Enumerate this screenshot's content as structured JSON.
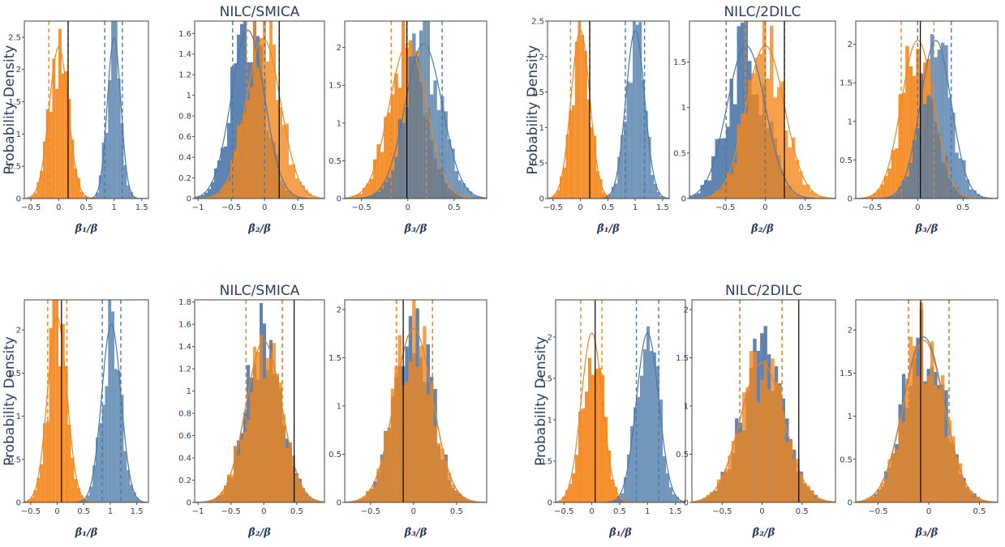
{
  "colors": {
    "orange": "#f58518",
    "blue": "#4c78a8",
    "axis_text": "#2a3f5f",
    "ref_line": "#000000"
  },
  "figure": {
    "ylabel": "Probability Density"
  },
  "chart_data": [
    {
      "type": "histogram",
      "group": "top-left",
      "panel": 1,
      "title": "",
      "xlabel": "β̂₁/β",
      "ylabel": "Probability Density",
      "xlim": [
        -0.62,
        1.62
      ],
      "ylim": [
        0,
        2.75
      ],
      "xticks": [
        -0.5,
        0,
        0.5,
        1,
        1.5
      ],
      "yticks": [
        0,
        0.5,
        1,
        1.5,
        2,
        2.5
      ],
      "series": [
        {
          "color": "orange",
          "mean": 0.0,
          "sd": 0.17,
          "peak": 2.35,
          "dashed": [
            -0.18,
            0.17
          ]
        },
        {
          "color": "blue",
          "mean": 1.0,
          "sd": 0.12,
          "peak": 2.5,
          "dashed": [
            0.83,
            1.15
          ]
        }
      ],
      "ref_line": 0.17
    },
    {
      "type": "histogram",
      "group": "top-left",
      "panel": 2,
      "title": "NILC/SMICA",
      "xlabel": "β̂₂/β",
      "xlim": [
        -1.05,
        0.9
      ],
      "ylim": [
        0,
        1.72
      ],
      "xticks": [
        -1,
        -0.5,
        0,
        0.5
      ],
      "yticks": [
        0,
        0.2,
        0.4,
        0.6,
        0.8,
        1,
        1.2,
        1.4,
        1.6
      ],
      "series": [
        {
          "color": "blue",
          "mean": -0.25,
          "sd": 0.25,
          "peak": 1.63,
          "dashed": [
            -0.48,
            0.0
          ]
        },
        {
          "color": "orange",
          "mean": -0.02,
          "sd": 0.26,
          "peak": 1.55,
          "dashed": [
            -0.27,
            0.22
          ]
        }
      ],
      "ref_line": 0.22
    },
    {
      "type": "histogram",
      "group": "top-left",
      "panel": 3,
      "title": "",
      "xlabel": "β̂₃/β",
      "xlim": [
        -0.68,
        0.85
      ],
      "ylim": [
        0,
        2.35
      ],
      "xticks": [
        -0.5,
        0,
        0.5
      ],
      "yticks": [
        0,
        0.5,
        1,
        1.5,
        2
      ],
      "series": [
        {
          "color": "orange",
          "mean": 0.0,
          "sd": 0.2,
          "peak": 2.05,
          "dashed": [
            -0.18,
            0.2
          ]
        },
        {
          "color": "blue",
          "mean": 0.17,
          "sd": 0.2,
          "peak": 2.05,
          "dashed": [
            -0.01,
            0.37
          ]
        }
      ],
      "ref_line": -0.01
    },
    {
      "type": "histogram",
      "group": "top-right",
      "panel": 1,
      "title": "",
      "xlabel": "β̂₁/β",
      "ylabel": "Probability Density",
      "xlim": [
        -0.6,
        1.62
      ],
      "ylim": [
        0,
        2.5
      ],
      "xticks": [
        -0.5,
        0,
        0.5,
        1,
        1.5
      ],
      "yticks": [
        0,
        0.5,
        1,
        1.5,
        2,
        2.5
      ],
      "series": [
        {
          "color": "orange",
          "mean": 0.0,
          "sd": 0.17,
          "peak": 2.37,
          "dashed": [
            -0.18,
            0.17
          ]
        },
        {
          "color": "blue",
          "mean": 1.0,
          "sd": 0.17,
          "peak": 2.37,
          "dashed": [
            0.82,
            1.17
          ]
        }
      ],
      "ref_line": 0.17
    },
    {
      "type": "histogram",
      "group": "top-right",
      "panel": 2,
      "title": "NILC/2DILC",
      "xlabel": "β̂₂/β",
      "xlim": [
        -0.95,
        0.88
      ],
      "ylim": [
        0,
        1.95
      ],
      "xticks": [
        -0.5,
        0,
        0.5
      ],
      "yticks": [
        0,
        0.5,
        1,
        1.5
      ],
      "series": [
        {
          "color": "blue",
          "mean": -0.24,
          "sd": 0.24,
          "peak": 1.68,
          "dashed": [
            -0.49,
            0.0
          ]
        },
        {
          "color": "orange",
          "mean": 0.0,
          "sd": 0.24,
          "peak": 1.68,
          "dashed": [
            -0.25,
            0.24
          ]
        }
      ],
      "ref_line": 0.24
    },
    {
      "type": "histogram",
      "group": "top-right",
      "panel": 3,
      "title": "",
      "xlabel": "β̂₃/β",
      "xlim": [
        -0.68,
        0.88
      ],
      "ylim": [
        0,
        2.3
      ],
      "xticks": [
        -0.5,
        0,
        0.5
      ],
      "yticks": [
        0,
        0.5,
        1,
        1.5,
        2
      ],
      "series": [
        {
          "color": "orange",
          "mean": 0.0,
          "sd": 0.18,
          "peak": 2.05,
          "dashed": [
            -0.18,
            0.18
          ]
        },
        {
          "color": "blue",
          "mean": 0.2,
          "sd": 0.17,
          "peak": 2.05,
          "dashed": [
            0.0,
            0.37
          ]
        }
      ],
      "ref_line": 0.03
    },
    {
      "type": "histogram",
      "group": "bottom-left",
      "panel": 1,
      "title": "",
      "xlabel": "β̂₁/β",
      "ylabel": "Probability Density",
      "xlim": [
        -0.62,
        1.72
      ],
      "ylim": [
        0,
        2.35
      ],
      "xticks": [
        -0.5,
        0,
        0.5,
        1,
        1.5
      ],
      "yticks": [
        0,
        0.5,
        1,
        1.5,
        2
      ],
      "series": [
        {
          "color": "orange",
          "mean": 0.0,
          "sd": 0.18,
          "peak": 2.15,
          "dashed": [
            -0.18,
            0.18
          ]
        },
        {
          "color": "blue",
          "mean": 1.02,
          "sd": 0.18,
          "peak": 2.07,
          "dashed": [
            0.85,
            1.2
          ]
        }
      ],
      "ref_line": 0.08
    },
    {
      "type": "histogram",
      "group": "bottom-left",
      "panel": 2,
      "title": "NILC/SMICA",
      "xlabel": "β̂₂/β",
      "xlim": [
        -1.05,
        0.92
      ],
      "ylim": [
        0,
        1.82
      ],
      "xticks": [
        -1,
        -0.5,
        0,
        0.5
      ],
      "yticks": [
        0,
        0.2,
        0.4,
        0.6,
        0.8,
        1,
        1.2,
        1.4,
        1.6,
        1.8
      ],
      "series": [
        {
          "color": "blue",
          "mean": 0.0,
          "sd": 0.27,
          "peak": 1.45,
          "dashed": [
            -0.27,
            0.28
          ]
        },
        {
          "color": "orange",
          "mean": 0.0,
          "sd": 0.27,
          "peak": 1.45,
          "dashed": [
            -0.27,
            0.28
          ]
        }
      ],
      "ref_line": 0.46
    },
    {
      "type": "histogram",
      "group": "bottom-left",
      "panel": 3,
      "title": "",
      "xlabel": "β̂₃/β",
      "xlim": [
        -0.8,
        0.85
      ],
      "ylim": [
        0,
        2.1
      ],
      "xticks": [
        -0.5,
        0,
        0.5
      ],
      "yticks": [
        0,
        0.5,
        1,
        1.5,
        2
      ],
      "series": [
        {
          "color": "blue",
          "mean": 0.0,
          "sd": 0.22,
          "peak": 1.8,
          "dashed": [
            -0.2,
            0.22
          ]
        },
        {
          "color": "orange",
          "mean": 0.0,
          "sd": 0.22,
          "peak": 1.8,
          "dashed": [
            -0.2,
            0.22
          ]
        }
      ],
      "ref_line": -0.12
    },
    {
      "type": "histogram",
      "group": "bottom-right",
      "panel": 1,
      "title": "",
      "xlabel": "β̂₁/β",
      "ylabel": "Probability Density",
      "xlim": [
        -0.65,
        1.68
      ],
      "ylim": [
        0,
        2.45
      ],
      "xticks": [
        -0.5,
        0,
        0.5,
        1,
        1.5
      ],
      "yticks": [
        0,
        0.5,
        1,
        1.5,
        2
      ],
      "series": [
        {
          "color": "orange",
          "mean": 0.0,
          "sd": 0.19,
          "peak": 2.05,
          "dashed": [
            -0.2,
            0.18
          ]
        },
        {
          "color": "blue",
          "mean": 1.0,
          "sd": 0.2,
          "peak": 2.05,
          "dashed": [
            0.8,
            1.2
          ]
        }
      ],
      "ref_line": 0.06
    },
    {
      "type": "histogram",
      "group": "bottom-right",
      "panel": 2,
      "title": "NILC/2DILC",
      "xlabel": "β̂₂/β",
      "xlim": [
        -0.88,
        0.92
      ],
      "ylim": [
        0,
        2.1
      ],
      "xticks": [
        -0.5,
        0,
        0.5
      ],
      "yticks": [
        0,
        0.5,
        1,
        1.5,
        2
      ],
      "series": [
        {
          "color": "blue",
          "mean": 0.0,
          "sd": 0.27,
          "peak": 1.45,
          "dashed": [
            -0.28,
            0.25
          ]
        },
        {
          "color": "orange",
          "mean": 0.0,
          "sd": 0.27,
          "peak": 1.45,
          "dashed": [
            -0.28,
            0.25
          ]
        }
      ],
      "ref_line": 0.46
    },
    {
      "type": "histogram",
      "group": "bottom-right",
      "panel": 3,
      "title": "",
      "xlabel": "β̂₃/β",
      "xlim": [
        -0.72,
        0.68
      ],
      "ylim": [
        0,
        2.35
      ],
      "xticks": [
        -0.5,
        0,
        0.5
      ],
      "yticks": [
        0,
        0.5,
        1,
        1.5,
        2
      ],
      "series": [
        {
          "color": "blue",
          "mean": -0.05,
          "sd": 0.2,
          "peak": 1.92,
          "dashed": [
            -0.2,
            0.2
          ]
        },
        {
          "color": "orange",
          "mean": -0.05,
          "sd": 0.2,
          "peak": 1.88,
          "dashed": [
            -0.2,
            0.2
          ]
        }
      ],
      "ref_line": -0.08
    }
  ]
}
